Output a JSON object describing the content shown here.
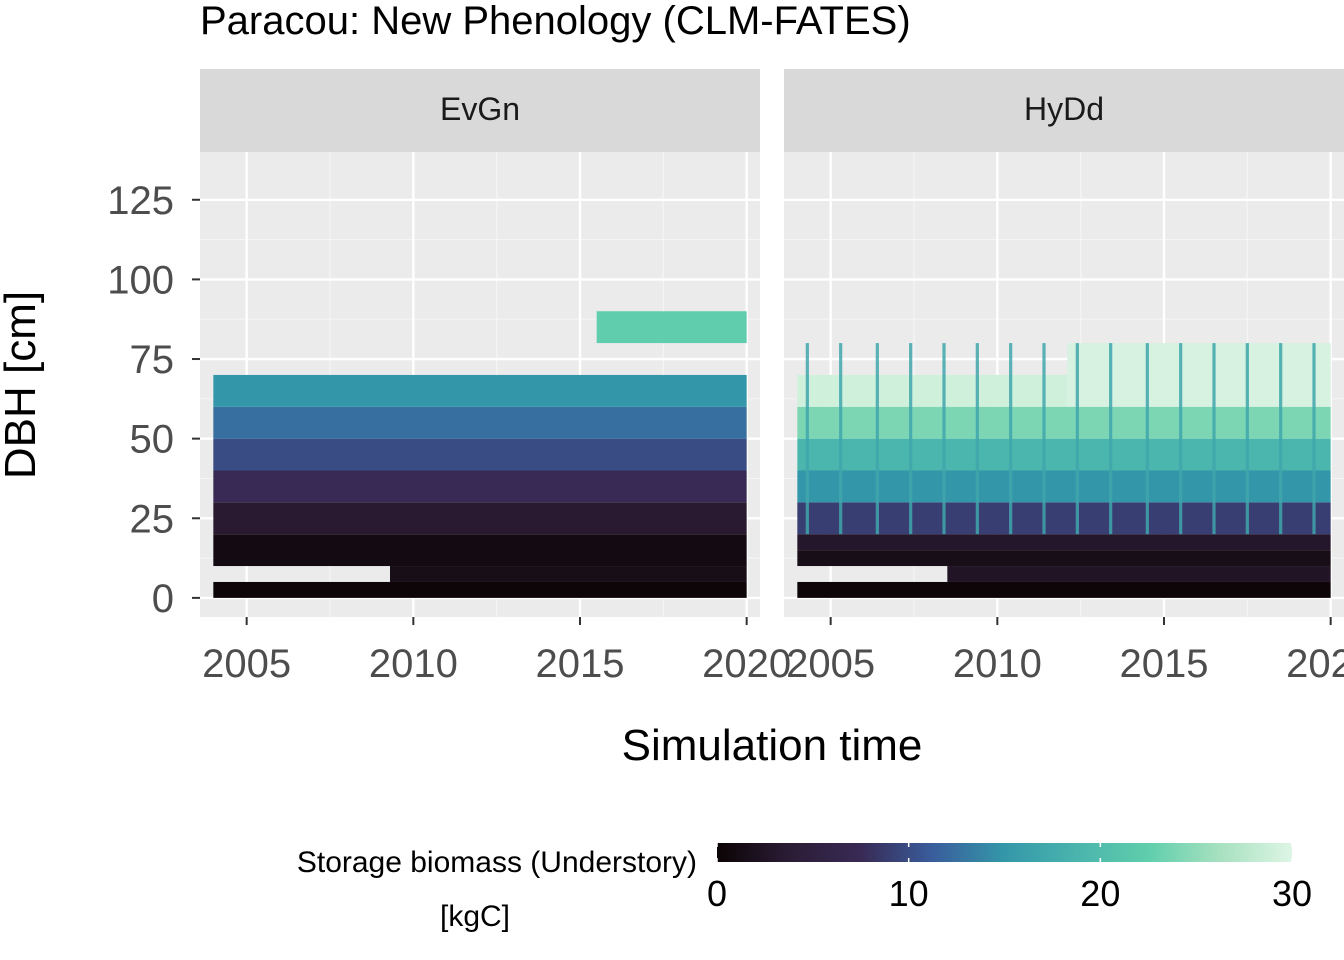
{
  "chart_data": {
    "type": "heatmap",
    "title": "Paracou: New Phenology (CLM-FATES)",
    "xlabel": "Simulation time",
    "ylabel": "DBH [cm]",
    "xlim": [
      2003.6,
      2020.4
    ],
    "ylim": [
      -6,
      140
    ],
    "x_ticks": [
      2005,
      2010,
      2015,
      2020
    ],
    "x_tick_labels": [
      "2005",
      "2010",
      "2015",
      "2020"
    ],
    "y_ticks": [
      0,
      25,
      50,
      75,
      100,
      125
    ],
    "y_tick_labels": [
      "0",
      "25",
      "50",
      "75",
      "100",
      "125"
    ],
    "grid": true,
    "legend": {
      "position": "bottom",
      "title_line1": "Storage biomass (Understory)",
      "title_line2": "[kgC]",
      "range": [
        0,
        30
      ],
      "ticks": [
        0,
        10,
        20,
        30
      ],
      "tick_labels": [
        "0",
        "10",
        "20",
        "30"
      ],
      "colors": [
        "#0b0405",
        "#2b1c35",
        "#382a54",
        "#395d9c",
        "#3497a9",
        "#4ab4ad",
        "#60ceac",
        "#a7e1c0",
        "#def5e5"
      ]
    },
    "panels": [
      {
        "label": "EvGn",
        "bins": [
          {
            "dbh_min": 0,
            "dbh_max": 5,
            "x_start": 2004,
            "x_end": 2020,
            "value": 0.2
          },
          {
            "dbh_min": 5,
            "dbh_max": 10,
            "x_start": 2009.3,
            "x_end": 2020,
            "value": 1.5
          },
          {
            "dbh_min": 10,
            "dbh_max": 20,
            "x_start": 2004,
            "x_end": 2020,
            "value": 1.0
          },
          {
            "dbh_min": 20,
            "dbh_max": 30,
            "x_start": 2004,
            "x_end": 2020,
            "value": 3.5
          },
          {
            "dbh_min": 30,
            "dbh_max": 40,
            "x_start": 2004,
            "x_end": 2020,
            "value": 7.5
          },
          {
            "dbh_min": 40,
            "dbh_max": 50,
            "x_start": 2004,
            "x_end": 2020,
            "value": 10.0
          },
          {
            "dbh_min": 50,
            "dbh_max": 60,
            "x_start": 2004,
            "x_end": 2020,
            "value": 12.5
          },
          {
            "dbh_min": 60,
            "dbh_max": 70,
            "x_start": 2004,
            "x_end": 2020,
            "value": 15.0
          },
          {
            "dbh_min": 80,
            "dbh_max": 90,
            "x_start": 2015.5,
            "x_end": 2020,
            "value": 22.5
          }
        ],
        "spikes": []
      },
      {
        "label": "HyDd",
        "bins": [
          {
            "dbh_min": 0,
            "dbh_max": 5,
            "x_start": 2004,
            "x_end": 2020,
            "value": 0.2
          },
          {
            "dbh_min": 5,
            "dbh_max": 10,
            "x_start": 2008.5,
            "x_end": 2020,
            "value": 2.5
          },
          {
            "dbh_min": 10,
            "dbh_max": 15,
            "x_start": 2004,
            "x_end": 2020,
            "value": 1.5
          },
          {
            "dbh_min": 15,
            "dbh_max": 20,
            "x_start": 2004,
            "x_end": 2020,
            "value": 3.0
          },
          {
            "dbh_min": 20,
            "dbh_max": 30,
            "x_start": 2004,
            "x_end": 2020,
            "value": 9.0
          },
          {
            "dbh_min": 30,
            "dbh_max": 40,
            "x_start": 2004,
            "x_end": 2020,
            "value": 15.0
          },
          {
            "dbh_min": 40,
            "dbh_max": 50,
            "x_start": 2004,
            "x_end": 2020,
            "value": 19.0
          },
          {
            "dbh_min": 50,
            "dbh_max": 60,
            "x_start": 2004,
            "x_end": 2020,
            "value": 24.0
          },
          {
            "dbh_min": 60,
            "dbh_max": 70,
            "x_start": 2004,
            "x_end": 2012.1,
            "value": 29.0
          },
          {
            "dbh_min": 60,
            "dbh_max": 80,
            "x_start": 2012.1,
            "x_end": 2020,
            "value": 29.5
          }
        ],
        "spikes": [
          2004.3,
          2005.3,
          2006.4,
          2007.4,
          2008.4,
          2009.4,
          2010.4,
          2011.4,
          2012.4,
          2013.4,
          2014.5,
          2015.5,
          2016.5,
          2017.5,
          2018.5,
          2019.5
        ],
        "spike_value": 17.0
      }
    ]
  }
}
